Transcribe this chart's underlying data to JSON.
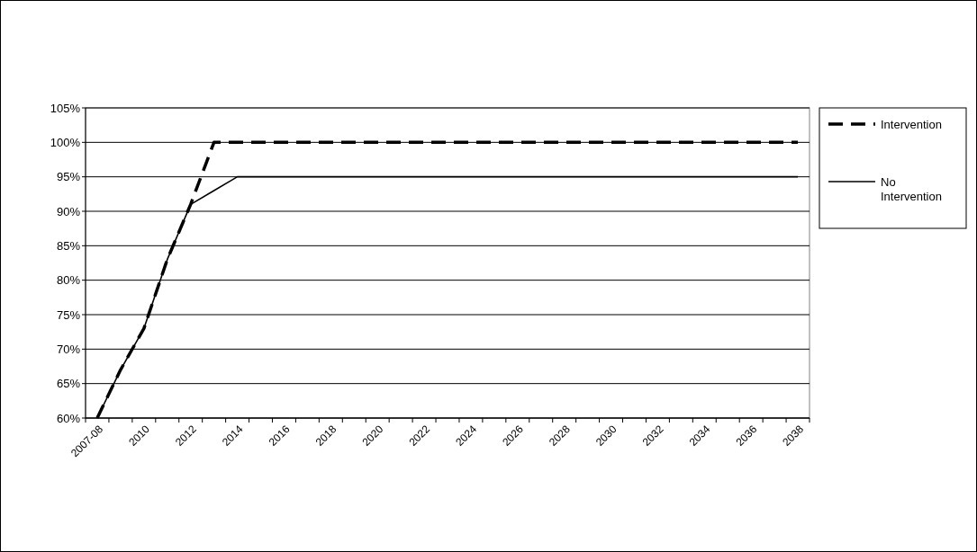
{
  "chart_data": {
    "type": "line",
    "categories": [
      "2007-08",
      null,
      "2010",
      null,
      "2012",
      null,
      "2014",
      null,
      "2016",
      null,
      "2018",
      null,
      "2020",
      null,
      "2022",
      null,
      "2024",
      null,
      "2026",
      null,
      "2028",
      null,
      "2030",
      null,
      "2032",
      null,
      "2034",
      null,
      "2036",
      null,
      "2038"
    ],
    "series": [
      {
        "name": "Intervention",
        "color": "#000000",
        "line_style": "dashed",
        "values": [
          60,
          67,
          73,
          83,
          91,
          100,
          100,
          100,
          100,
          100,
          100,
          100,
          100,
          100,
          100,
          100,
          100,
          100,
          100,
          100,
          100,
          100,
          100,
          100,
          100,
          100,
          100,
          100,
          100,
          100,
          100
        ]
      },
      {
        "name": "No Intervention",
        "color": "#000000",
        "line_style": "solid",
        "values": [
          60,
          67,
          73,
          83,
          91,
          93,
          95,
          95,
          95,
          95,
          95,
          95,
          95,
          95,
          95,
          95,
          95,
          95,
          95,
          95,
          95,
          95,
          95,
          95,
          95,
          95,
          95,
          95,
          95,
          95,
          95
        ]
      }
    ],
    "ylim": [
      60,
      105
    ],
    "yticks": [
      {
        "value": 60,
        "label": "60%"
      },
      {
        "value": 65,
        "label": "65%"
      },
      {
        "value": 70,
        "label": "70%"
      },
      {
        "value": 75,
        "label": "75%"
      },
      {
        "value": 80,
        "label": "80%"
      },
      {
        "value": 85,
        "label": "85%"
      },
      {
        "value": 90,
        "label": "90%"
      },
      {
        "value": 95,
        "label": "95%"
      },
      {
        "value": 100,
        "label": "100%"
      },
      {
        "value": 105,
        "label": "105%"
      }
    ],
    "grid": "y",
    "legend": "right",
    "marker": "none"
  }
}
